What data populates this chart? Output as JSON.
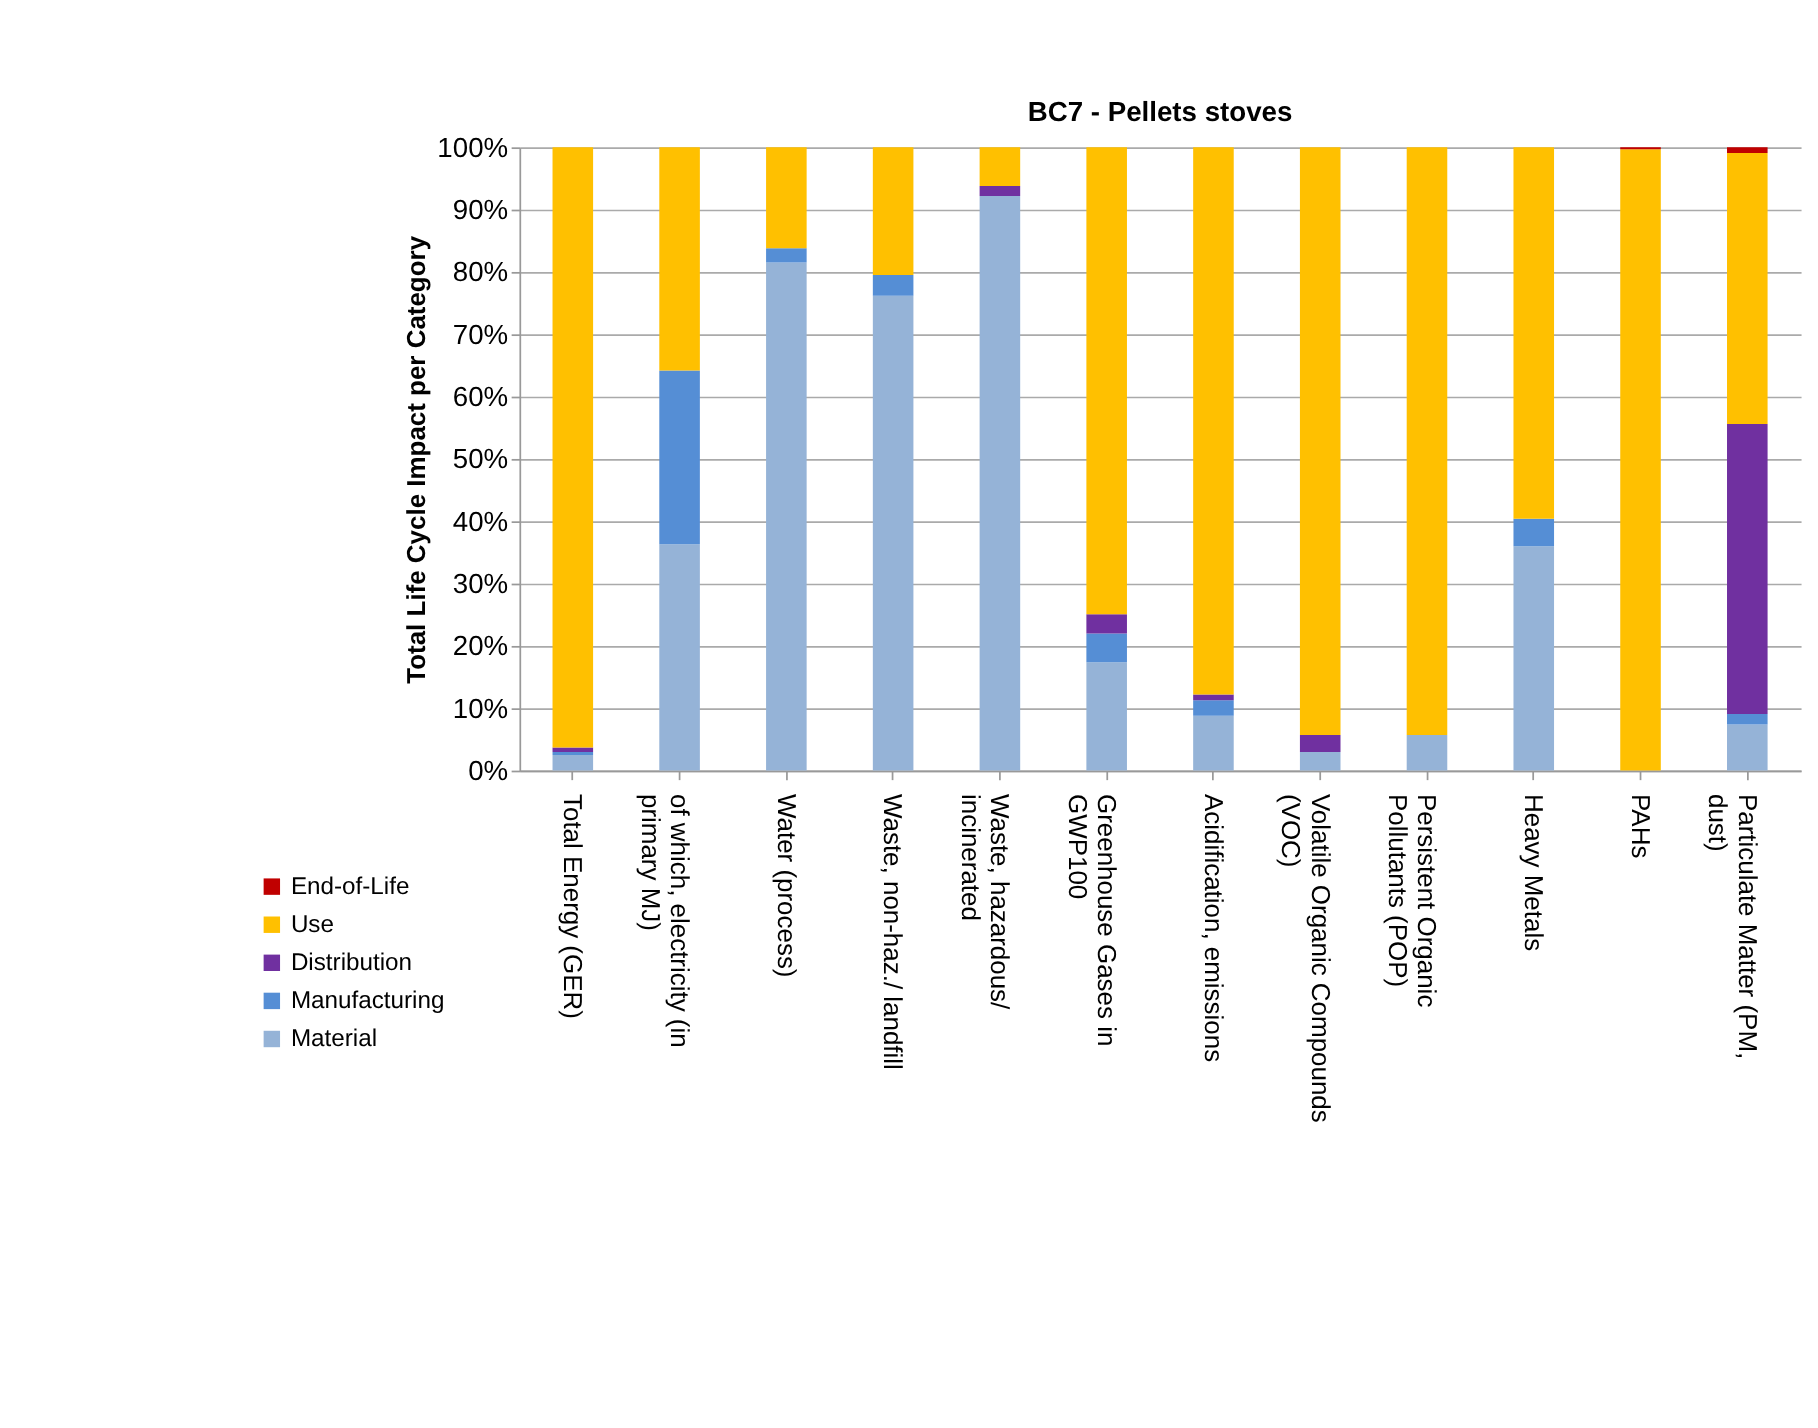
{
  "chart_data": {
    "type": "bar",
    "stacked": true,
    "title": "BC7 - Pellets stoves",
    "ylabel": "Total Life Cycle Impact  per Category",
    "categories": [
      "Total Energy (GER)",
      "of which, electricity (in primary MJ)",
      "Water (process)",
      "Waste, non-haz./ landfill",
      "Waste, hazardous/ incinerated",
      "Greenhouse Gases  in GWP100",
      "Acidification, emissions",
      "Volatile Organic Compounds (VOC)",
      "Persistent Organic Pollutants (POP)",
      "Heavy Metals",
      "PAHs",
      "Particulate Matter (PM, dust)"
    ],
    "series": [
      {
        "name": "Material",
        "color": "#95b3d7",
        "values": [
          2.5,
          36.3,
          81.5,
          76.2,
          92.2,
          17.4,
          8.8,
          3.0,
          5.7,
          36.0,
          0,
          7.4
        ]
      },
      {
        "name": "Manufacturing",
        "color": "#558ed5",
        "values": [
          0.5,
          27.9,
          2.3,
          3.3,
          0,
          4.6,
          2.5,
          0,
          0,
          4.4,
          0,
          1.7
        ]
      },
      {
        "name": "Distribution",
        "color": "#7030a0",
        "values": [
          0.7,
          0,
          0,
          0,
          1.6,
          3.1,
          0.9,
          2.7,
          0,
          0,
          0,
          46.5
        ]
      },
      {
        "name": "Use",
        "color": "#ffc000",
        "values": [
          96.3,
          35.8,
          16.2,
          20.5,
          6.2,
          74.9,
          87.8,
          94.3,
          94.3,
          59.6,
          99.7,
          43.5
        ]
      },
      {
        "name": "End-of-Life",
        "color": "#c00000",
        "values": [
          0,
          0,
          0,
          0,
          0,
          0,
          0,
          0,
          0,
          0,
          0.3,
          0.9
        ]
      }
    ],
    "ylim": [
      0,
      100
    ],
    "yticks": [
      {
        "value": 0,
        "label": "0%"
      },
      {
        "value": 10,
        "label": "10%"
      },
      {
        "value": 20,
        "label": "20%"
      },
      {
        "value": 30,
        "label": "30%"
      },
      {
        "value": 40,
        "label": "40%"
      },
      {
        "value": 50,
        "label": "50%"
      },
      {
        "value": 60,
        "label": "60%"
      },
      {
        "value": 70,
        "label": "70%"
      },
      {
        "value": 80,
        "label": "80%"
      },
      {
        "value": 90,
        "label": "90%"
      },
      {
        "value": 100,
        "label": "100%"
      }
    ],
    "grid": "y",
    "legend": "bottom left"
  }
}
